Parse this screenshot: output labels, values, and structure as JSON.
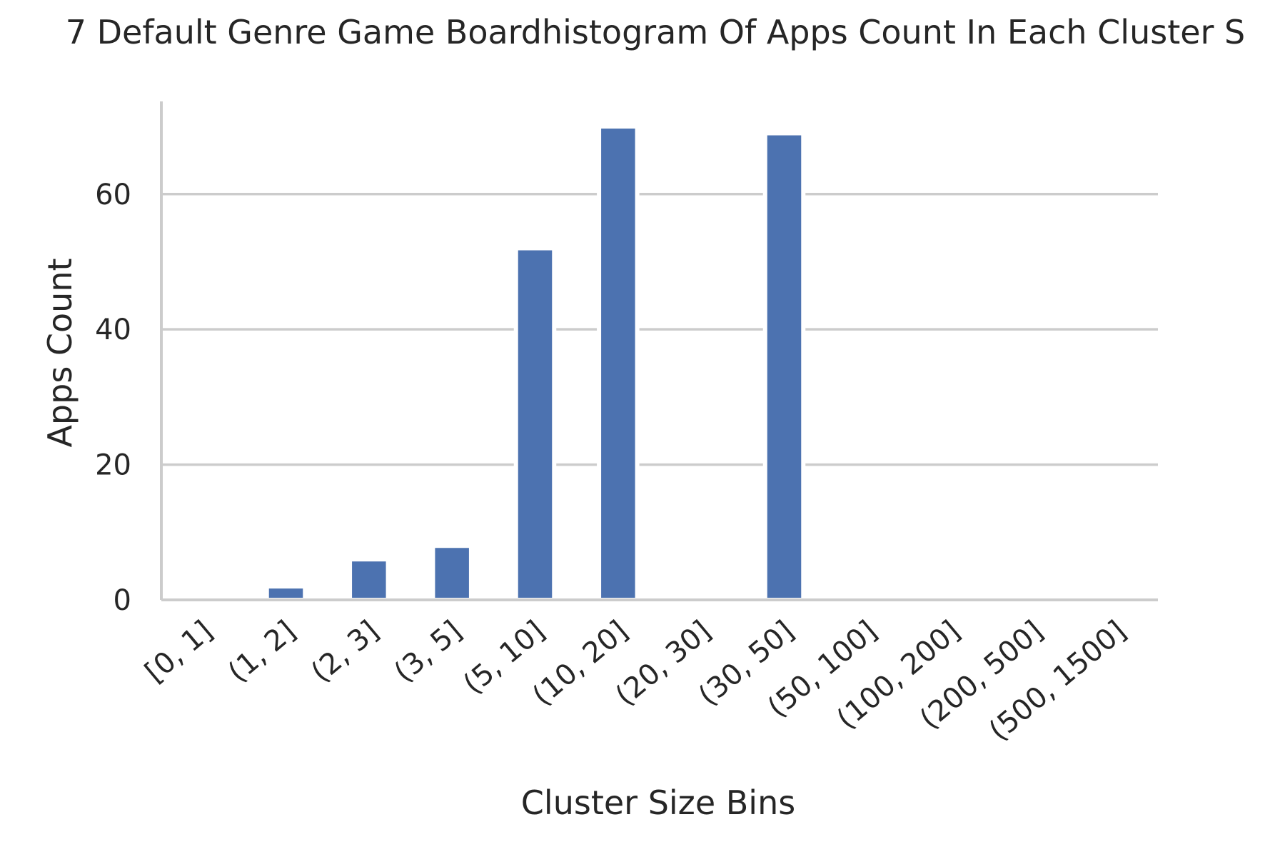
{
  "chart_data": {
    "type": "bar",
    "title": "7 Default Genre Game Boardhistogram Of Apps Count In Each Cluster S",
    "xlabel": "Cluster Size Bins",
    "ylabel": "Apps Count",
    "categories": [
      "[0, 1]",
      "(1, 2]",
      "(2, 3]",
      "(3, 5]",
      "(5, 10]",
      "(10, 20]",
      "(20, 30]",
      "(30, 50]",
      "(50, 100]",
      "(100, 200]",
      "(200, 500]",
      "(500, 1500]"
    ],
    "values": [
      0,
      2,
      6,
      8,
      52,
      70,
      0,
      69,
      0,
      0,
      0,
      0
    ],
    "ylim": [
      0,
      73.7
    ],
    "yticks": [
      0,
      20,
      40,
      60
    ],
    "grid": true,
    "bar_color": "#4c72b0",
    "grid_color": "#cccccc",
    "text_color": "#262626"
  }
}
